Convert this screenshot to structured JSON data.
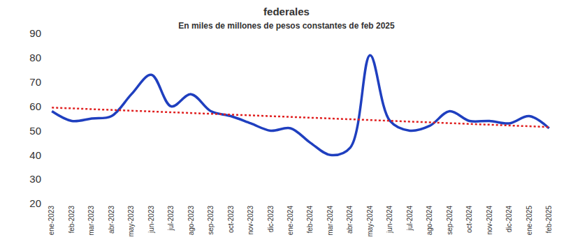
{
  "chart_data": {
    "type": "line",
    "title": "federales",
    "subtitle": "En miles de millones de pesos constantes de feb 2025",
    "categories": [
      "ene-2023",
      "feb-2023",
      "mar-2023",
      "abr-2023",
      "may-2023",
      "jun-2023",
      "jul-2023",
      "ago-2023",
      "sep-2023",
      "oct-2023",
      "nov-2023",
      "dic-2023",
      "ene-2024",
      "feb-2024",
      "mar-2024",
      "abr-2024",
      "may-2024",
      "jun-2024",
      "jul-2024",
      "ago-2024",
      "sep-2024",
      "oct-2024",
      "nov-2024",
      "dic-2024",
      "ene-2025",
      "feb-2025"
    ],
    "series": [
      {
        "color": "#1f3fbf",
        "line_style": "solid",
        "values": [
          58,
          54,
          55,
          56,
          65,
          73,
          60,
          65,
          58,
          56,
          53,
          50,
          51,
          45,
          40,
          43,
          81,
          54,
          50,
          52,
          58,
          54,
          54,
          53,
          56,
          51
        ]
      },
      {
        "color": "#e02020",
        "line_style": "dotted",
        "values": [
          59.5,
          null,
          null,
          null,
          null,
          null,
          null,
          null,
          null,
          null,
          null,
          null,
          null,
          null,
          null,
          null,
          null,
          null,
          null,
          null,
          null,
          null,
          null,
          null,
          null,
          51.5
        ]
      }
    ],
    "ylim": [
      20,
      90
    ],
    "yticks": [
      20,
      30,
      40,
      50,
      60,
      70,
      80,
      90
    ],
    "grid": false
  }
}
